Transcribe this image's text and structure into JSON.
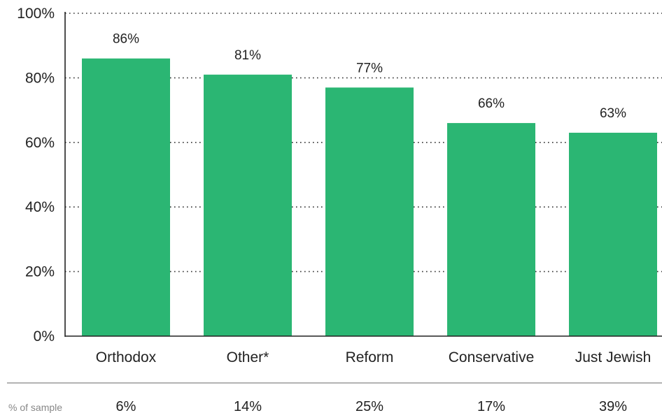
{
  "chart_data": {
    "type": "bar",
    "categories": [
      "Orthodox",
      "Other*",
      "Reform",
      "Conservative",
      "Just Jewish"
    ],
    "values": [
      86,
      81,
      77,
      66,
      63
    ],
    "data_labels": [
      "86%",
      "81%",
      "77%",
      "66%",
      "63%"
    ],
    "ylim": [
      0,
      100
    ],
    "yticks": [
      0,
      20,
      40,
      60,
      80,
      100
    ],
    "ytick_labels": [
      "0%",
      "20%",
      "40%",
      "60%",
      "80%",
      "100%"
    ],
    "grid": "dotted horizontal",
    "bar_color": "#2bb673"
  },
  "footer": {
    "label": "% of sample",
    "values": [
      "6%",
      "14%",
      "25%",
      "17%",
      "39%"
    ]
  }
}
